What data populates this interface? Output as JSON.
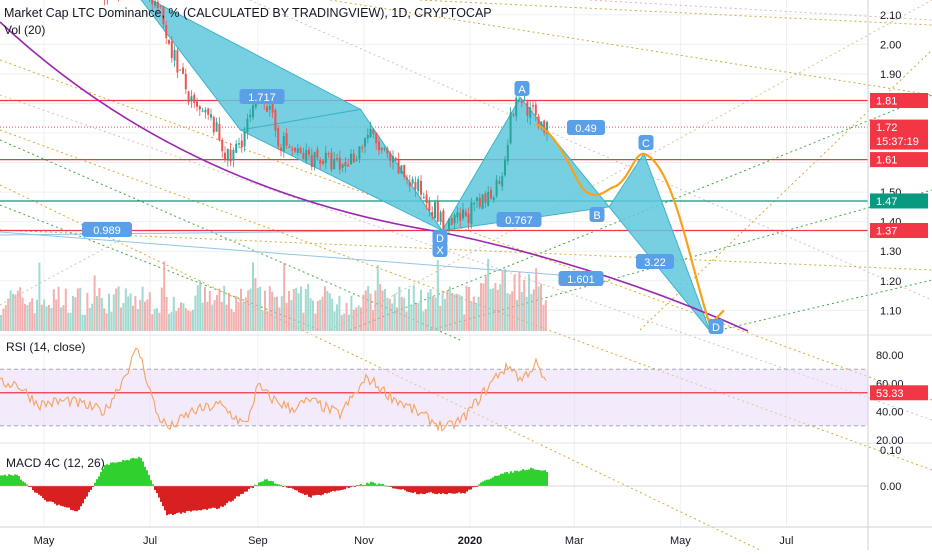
{
  "header": {
    "title": "Market Cap LTC Dominance, % (CALCULATED BY TRADINGVIEW), 1D, CRYPTOCAP",
    "volume_label": "Vol (20)"
  },
  "colors": {
    "pattern_fill": "#5ec8dc",
    "pattern_stroke": "#3fb3cc",
    "projection": "#f7a21c",
    "support_curve": "#9c27b0",
    "level_red": "#f23645",
    "level_green": "#089981",
    "rsi_line": "#f4a460",
    "rsi_band": "#ead9f7",
    "macd_up": "#2fd12f",
    "macd_down": "#d92020",
    "label_blue": "#5aa0e8",
    "grid": "#eef0f3"
  },
  "chart_data": [
    {
      "type": "candlestick",
      "panel": "price",
      "title": "Market Cap LTC Dominance, % (CALCULATED BY TRADINGVIEW), 1D, CRYPTOCAP",
      "x_tick_labels": [
        "May",
        "Jul",
        "Sep",
        "Nov",
        "2020",
        "Mar",
        "May",
        "Jul"
      ],
      "y_tick_labels": [
        "1.10",
        "1.20",
        "1.30",
        "1.40",
        "1.50",
        "1.60",
        "1.70",
        "1.80",
        "1.90",
        "2.00",
        "2.10"
      ],
      "ylim": [
        1.03,
        2.15
      ],
      "price_path": [
        {
          "x": "2019-04-15",
          "y": 2.3
        },
        {
          "x": "2019-05-05",
          "y": 2.28
        },
        {
          "x": "2019-06-01",
          "y": 2.18
        },
        {
          "x": "2019-06-25",
          "y": 2.22
        },
        {
          "x": "2019-07-05",
          "y": 2.12
        },
        {
          "x": "2019-07-15",
          "y": 1.95
        },
        {
          "x": "2019-07-25",
          "y": 1.78
        },
        {
          "x": "2019-08-05",
          "y": 1.74
        },
        {
          "x": "2019-08-15",
          "y": 1.6
        },
        {
          "x": "2019-08-25",
          "y": 1.72
        },
        {
          "x": "2019-09-03",
          "y": 1.84
        },
        {
          "x": "2019-09-12",
          "y": 1.68
        },
        {
          "x": "2019-09-25",
          "y": 1.62
        },
        {
          "x": "2019-10-05",
          "y": 1.62
        },
        {
          "x": "2019-10-18",
          "y": 1.58
        },
        {
          "x": "2019-10-28",
          "y": 1.64
        },
        {
          "x": "2019-11-03",
          "y": 1.7
        },
        {
          "x": "2019-11-15",
          "y": 1.6
        },
        {
          "x": "2019-11-25",
          "y": 1.55
        },
        {
          "x": "2019-12-08",
          "y": 1.47
        },
        {
          "x": "2019-12-18",
          "y": 1.37
        },
        {
          "x": "2019-12-28",
          "y": 1.42
        },
        {
          "x": "2020-01-08",
          "y": 1.46
        },
        {
          "x": "2020-01-18",
          "y": 1.55
        },
        {
          "x": "2020-01-25",
          "y": 1.78
        },
        {
          "x": "2020-01-30",
          "y": 1.82
        },
        {
          "x": "2020-02-05",
          "y": 1.76
        },
        {
          "x": "2020-02-10",
          "y": 1.74
        },
        {
          "x": "2020-02-14",
          "y": 1.71
        }
      ],
      "horizontal_levels": [
        {
          "value": 1.81,
          "label": "1.81",
          "color": "red"
        },
        {
          "value": 1.72,
          "label": "1.72",
          "color": "red",
          "countdown": "15:37:19"
        },
        {
          "value": 1.61,
          "label": "1.61",
          "color": "red"
        },
        {
          "value": 1.47,
          "label": "1.47",
          "color": "green"
        },
        {
          "value": 1.37,
          "label": "1.37",
          "color": "red"
        }
      ],
      "harmonic_pattern_1": [
        {
          "point": "",
          "x": "2019-06-22",
          "y": 2.18
        },
        {
          "point": "",
          "x": "2019-08-22",
          "y": 1.71
        },
        {
          "point": "",
          "x": "2019-10-30",
          "y": 1.78
        },
        {
          "point": "",
          "x": "2019-12-16",
          "y": 1.37
        }
      ],
      "harmonic_pattern_2": [
        {
          "point": "X",
          "x": "2019-12-16",
          "y": 1.37
        },
        {
          "point": "A",
          "x": "2020-01-30",
          "y": 1.82
        },
        {
          "point": "B",
          "x": "2020-03-21",
          "y": 1.45
        },
        {
          "point": "C",
          "x": "2020-04-10",
          "y": 1.63
        },
        {
          "point": "D",
          "x": "2020-05-18",
          "y": 1.03
        }
      ],
      "ratio_labels": [
        "1.717",
        "0.989",
        "0.49",
        "0.767",
        "3.22",
        "1.601"
      ],
      "point_labels": [
        "A",
        "B",
        "C",
        "D",
        "X",
        "D"
      ],
      "projection_path": [
        {
          "x": "2020-02-08",
          "y": 1.73
        },
        {
          "x": "2020-03-08",
          "y": 1.5
        },
        {
          "x": "2020-03-25",
          "y": 1.52
        },
        {
          "x": "2020-04-10",
          "y": 1.63
        },
        {
          "x": "2020-05-18",
          "y": 1.05
        },
        {
          "x": "2020-05-26",
          "y": 1.1
        }
      ]
    },
    {
      "type": "bar",
      "panel": "volume",
      "name": "Vol (20)",
      "values_relative": [
        0.35,
        0.9
      ]
    },
    {
      "type": "line",
      "panel": "rsi",
      "name": "RSI (14, close)",
      "y_tick_labels": [
        "20.00",
        "40.00",
        "60.00",
        "80.00"
      ],
      "ylim": [
        20,
        92
      ],
      "band": [
        30,
        70
      ],
      "current_value": 53.33,
      "current_value_label": "53.33",
      "values": [
        {
          "x": "2019-04-15",
          "y": 60
        },
        {
          "x": "2019-04-28",
          "y": 45
        },
        {
          "x": "2019-05-15",
          "y": 48
        },
        {
          "x": "2019-06-05",
          "y": 40
        },
        {
          "x": "2019-06-15",
          "y": 62
        },
        {
          "x": "2019-06-24",
          "y": 85
        },
        {
          "x": "2019-07-05",
          "y": 38
        },
        {
          "x": "2019-07-12",
          "y": 28
        },
        {
          "x": "2019-07-25",
          "y": 40
        },
        {
          "x": "2019-08-10",
          "y": 45
        },
        {
          "x": "2019-08-25",
          "y": 30
        },
        {
          "x": "2019-09-01",
          "y": 58
        },
        {
          "x": "2019-09-08",
          "y": 50
        },
        {
          "x": "2019-09-20",
          "y": 42
        },
        {
          "x": "2019-10-01",
          "y": 48
        },
        {
          "x": "2019-10-18",
          "y": 38
        },
        {
          "x": "2019-11-03",
          "y": 64
        },
        {
          "x": "2019-11-15",
          "y": 52
        },
        {
          "x": "2019-12-01",
          "y": 40
        },
        {
          "x": "2019-12-18",
          "y": 28
        },
        {
          "x": "2019-12-28",
          "y": 35
        },
        {
          "x": "2020-01-08",
          "y": 52
        },
        {
          "x": "2020-01-18",
          "y": 68
        },
        {
          "x": "2020-01-25",
          "y": 72
        },
        {
          "x": "2020-01-30",
          "y": 62
        },
        {
          "x": "2020-02-08",
          "y": 74
        },
        {
          "x": "2020-02-14",
          "y": 58
        }
      ]
    },
    {
      "type": "bar",
      "panel": "macd",
      "name": "MACD 4C (12, 26)",
      "y_tick_labels": [
        "0.00",
        "0.10"
      ],
      "ylim": [
        -0.11,
        0.11
      ],
      "values": [
        {
          "x": "2019-04-15",
          "y": 0.03
        },
        {
          "x": "2019-05-01",
          "y": -0.04
        },
        {
          "x": "2019-05-20",
          "y": -0.07
        },
        {
          "x": "2019-06-05",
          "y": 0.06
        },
        {
          "x": "2019-06-25",
          "y": 0.08
        },
        {
          "x": "2019-07-10",
          "y": -0.08
        },
        {
          "x": "2019-08-10",
          "y": -0.06
        },
        {
          "x": "2019-09-05",
          "y": 0.02
        },
        {
          "x": "2019-10-01",
          "y": -0.03
        },
        {
          "x": "2019-11-05",
          "y": 0.01
        },
        {
          "x": "2019-12-01",
          "y": -0.02
        },
        {
          "x": "2019-12-28",
          "y": -0.02
        },
        {
          "x": "2020-01-15",
          "y": 0.03
        },
        {
          "x": "2020-02-05",
          "y": 0.05
        },
        {
          "x": "2020-02-14",
          "y": 0.04
        }
      ]
    }
  ],
  "panels": {
    "rsi_label": "RSI (14, close)",
    "macd_label": "MACD 4C (12, 26)"
  }
}
